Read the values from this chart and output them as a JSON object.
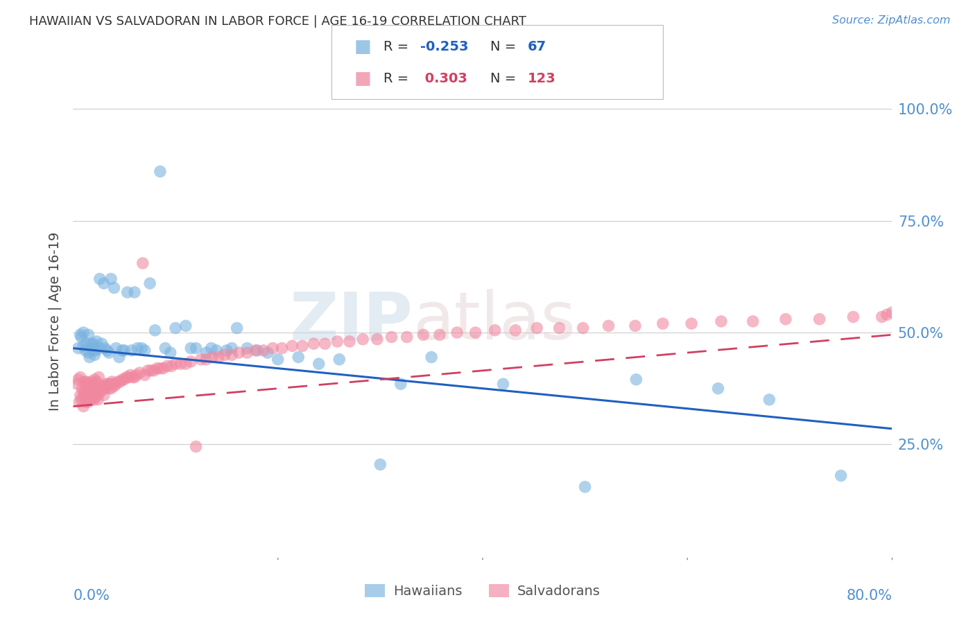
{
  "title": "HAWAIIAN VS SALVADORAN IN LABOR FORCE | AGE 16-19 CORRELATION CHART",
  "source_text": "Source: ZipAtlas.com",
  "ylabel": "In Labor Force | Age 16-19",
  "xlim": [
    0.0,
    0.8
  ],
  "ylim": [
    0.0,
    1.05
  ],
  "yticks": [
    0.25,
    0.5,
    0.75,
    1.0
  ],
  "ytick_labels": [
    "25.0%",
    "50.0%",
    "75.0%",
    "100.0%"
  ],
  "hawaiians_color": "#7ab3e0",
  "salvadorans_color": "#f088a0",
  "trend_hawaiians_color": "#2060c0",
  "trend_salvadorans_color": "#d04060",
  "background_color": "#ffffff",
  "grid_color": "#cccccc",
  "title_color": "#333333",
  "axis_label_color": "#5090d0",
  "haw_trend_start": 0.465,
  "haw_trend_end": 0.285,
  "sal_trend_start": 0.335,
  "sal_trend_end": 0.495,
  "hawaiians_x": [
    0.005,
    0.007,
    0.008,
    0.01,
    0.01,
    0.012,
    0.013,
    0.015,
    0.015,
    0.016,
    0.017,
    0.018,
    0.019,
    0.02,
    0.021,
    0.022,
    0.023,
    0.025,
    0.026,
    0.028,
    0.03,
    0.031,
    0.033,
    0.035,
    0.037,
    0.04,
    0.042,
    0.045,
    0.048,
    0.05,
    0.053,
    0.057,
    0.06,
    0.063,
    0.067,
    0.07,
    0.075,
    0.08,
    0.085,
    0.09,
    0.095,
    0.1,
    0.11,
    0.115,
    0.12,
    0.13,
    0.135,
    0.14,
    0.15,
    0.155,
    0.16,
    0.17,
    0.18,
    0.19,
    0.2,
    0.22,
    0.24,
    0.26,
    0.3,
    0.32,
    0.35,
    0.42,
    0.5,
    0.55,
    0.63,
    0.68,
    0.75
  ],
  "hawaiians_y": [
    0.465,
    0.495,
    0.49,
    0.47,
    0.5,
    0.46,
    0.475,
    0.455,
    0.495,
    0.445,
    0.475,
    0.465,
    0.46,
    0.475,
    0.45,
    0.46,
    0.48,
    0.465,
    0.62,
    0.475,
    0.61,
    0.465,
    0.46,
    0.455,
    0.62,
    0.6,
    0.465,
    0.445,
    0.46,
    0.46,
    0.59,
    0.46,
    0.59,
    0.465,
    0.465,
    0.46,
    0.61,
    0.505,
    0.86,
    0.465,
    0.455,
    0.51,
    0.515,
    0.465,
    0.465,
    0.455,
    0.465,
    0.46,
    0.46,
    0.465,
    0.51,
    0.465,
    0.46,
    0.455,
    0.44,
    0.445,
    0.43,
    0.44,
    0.205,
    0.385,
    0.445,
    0.385,
    0.155,
    0.395,
    0.375,
    0.35,
    0.18
  ],
  "salvadorans_x": [
    0.004,
    0.005,
    0.006,
    0.007,
    0.007,
    0.008,
    0.009,
    0.01,
    0.01,
    0.011,
    0.011,
    0.012,
    0.012,
    0.013,
    0.013,
    0.014,
    0.014,
    0.015,
    0.015,
    0.016,
    0.016,
    0.017,
    0.017,
    0.018,
    0.018,
    0.019,
    0.019,
    0.02,
    0.02,
    0.021,
    0.021,
    0.022,
    0.022,
    0.023,
    0.023,
    0.024,
    0.025,
    0.025,
    0.026,
    0.027,
    0.028,
    0.029,
    0.03,
    0.031,
    0.032,
    0.033,
    0.034,
    0.035,
    0.036,
    0.037,
    0.038,
    0.039,
    0.04,
    0.042,
    0.044,
    0.046,
    0.048,
    0.05,
    0.052,
    0.054,
    0.056,
    0.058,
    0.06,
    0.062,
    0.065,
    0.068,
    0.07,
    0.073,
    0.076,
    0.079,
    0.082,
    0.085,
    0.088,
    0.092,
    0.096,
    0.1,
    0.105,
    0.11,
    0.115,
    0.12,
    0.125,
    0.13,
    0.136,
    0.142,
    0.148,
    0.155,
    0.162,
    0.17,
    0.178,
    0.186,
    0.195,
    0.204,
    0.214,
    0.224,
    0.235,
    0.246,
    0.258,
    0.27,
    0.283,
    0.297,
    0.311,
    0.326,
    0.342,
    0.358,
    0.375,
    0.393,
    0.412,
    0.432,
    0.453,
    0.475,
    0.498,
    0.523,
    0.549,
    0.576,
    0.604,
    0.633,
    0.664,
    0.696,
    0.729,
    0.762,
    0.79,
    0.795,
    0.8
  ],
  "salvadorans_y": [
    0.385,
    0.395,
    0.345,
    0.36,
    0.4,
    0.35,
    0.375,
    0.335,
    0.365,
    0.36,
    0.39,
    0.345,
    0.38,
    0.36,
    0.39,
    0.35,
    0.38,
    0.345,
    0.385,
    0.36,
    0.385,
    0.35,
    0.38,
    0.36,
    0.39,
    0.36,
    0.385,
    0.35,
    0.385,
    0.36,
    0.395,
    0.355,
    0.385,
    0.365,
    0.39,
    0.35,
    0.37,
    0.4,
    0.365,
    0.37,
    0.38,
    0.38,
    0.36,
    0.375,
    0.385,
    0.38,
    0.385,
    0.375,
    0.385,
    0.375,
    0.39,
    0.385,
    0.38,
    0.385,
    0.39,
    0.39,
    0.395,
    0.395,
    0.4,
    0.4,
    0.405,
    0.4,
    0.4,
    0.405,
    0.41,
    0.655,
    0.405,
    0.415,
    0.415,
    0.415,
    0.42,
    0.42,
    0.42,
    0.425,
    0.425,
    0.43,
    0.43,
    0.43,
    0.435,
    0.245,
    0.44,
    0.44,
    0.445,
    0.445,
    0.45,
    0.45,
    0.455,
    0.455,
    0.46,
    0.46,
    0.465,
    0.465,
    0.47,
    0.47,
    0.475,
    0.475,
    0.48,
    0.48,
    0.485,
    0.485,
    0.49,
    0.49,
    0.495,
    0.495,
    0.5,
    0.5,
    0.505,
    0.505,
    0.51,
    0.51,
    0.51,
    0.515,
    0.515,
    0.52,
    0.52,
    0.525,
    0.525,
    0.53,
    0.53,
    0.535,
    0.535,
    0.54,
    0.545
  ]
}
